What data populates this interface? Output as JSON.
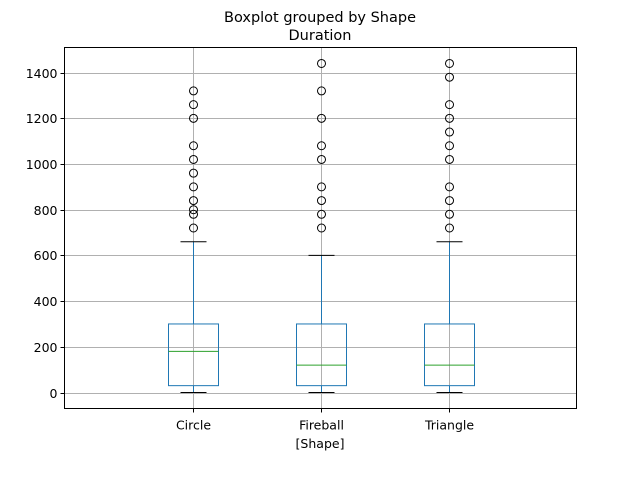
{
  "chart_data": {
    "type": "boxplot",
    "title": "Boxplot grouped by Shape",
    "subtitle": "Duration",
    "xlabel": "[Shape]",
    "ylabel": "",
    "ylim": [
      -70,
      1510
    ],
    "yticks": [
      0,
      200,
      400,
      600,
      800,
      1000,
      1200,
      1400
    ],
    "grid": true,
    "categories": [
      "Circle",
      "Fireball",
      "Triangle"
    ],
    "boxes": [
      {
        "whisker_low": 0,
        "q1": 30,
        "median": 180,
        "q3": 300,
        "whisker_high": 660,
        "outliers": [
          720,
          780,
          800,
          840,
          900,
          960,
          1020,
          1080,
          1200,
          1260,
          1320
        ]
      },
      {
        "whisker_low": 0,
        "q1": 30,
        "median": 120,
        "q3": 300,
        "whisker_high": 600,
        "outliers": [
          720,
          780,
          840,
          900,
          1020,
          1080,
          1200,
          1320,
          1440
        ]
      },
      {
        "whisker_low": 0,
        "q1": 30,
        "median": 120,
        "q3": 300,
        "whisker_high": 660,
        "outliers": [
          720,
          780,
          840,
          900,
          1020,
          1080,
          1140,
          1200,
          1260,
          1380,
          1440
        ]
      }
    ],
    "colors": {
      "box": "#1f77b4",
      "median": "#2ca02c",
      "whisker_cap": "#000000",
      "grid": "#b0b0b0"
    }
  }
}
